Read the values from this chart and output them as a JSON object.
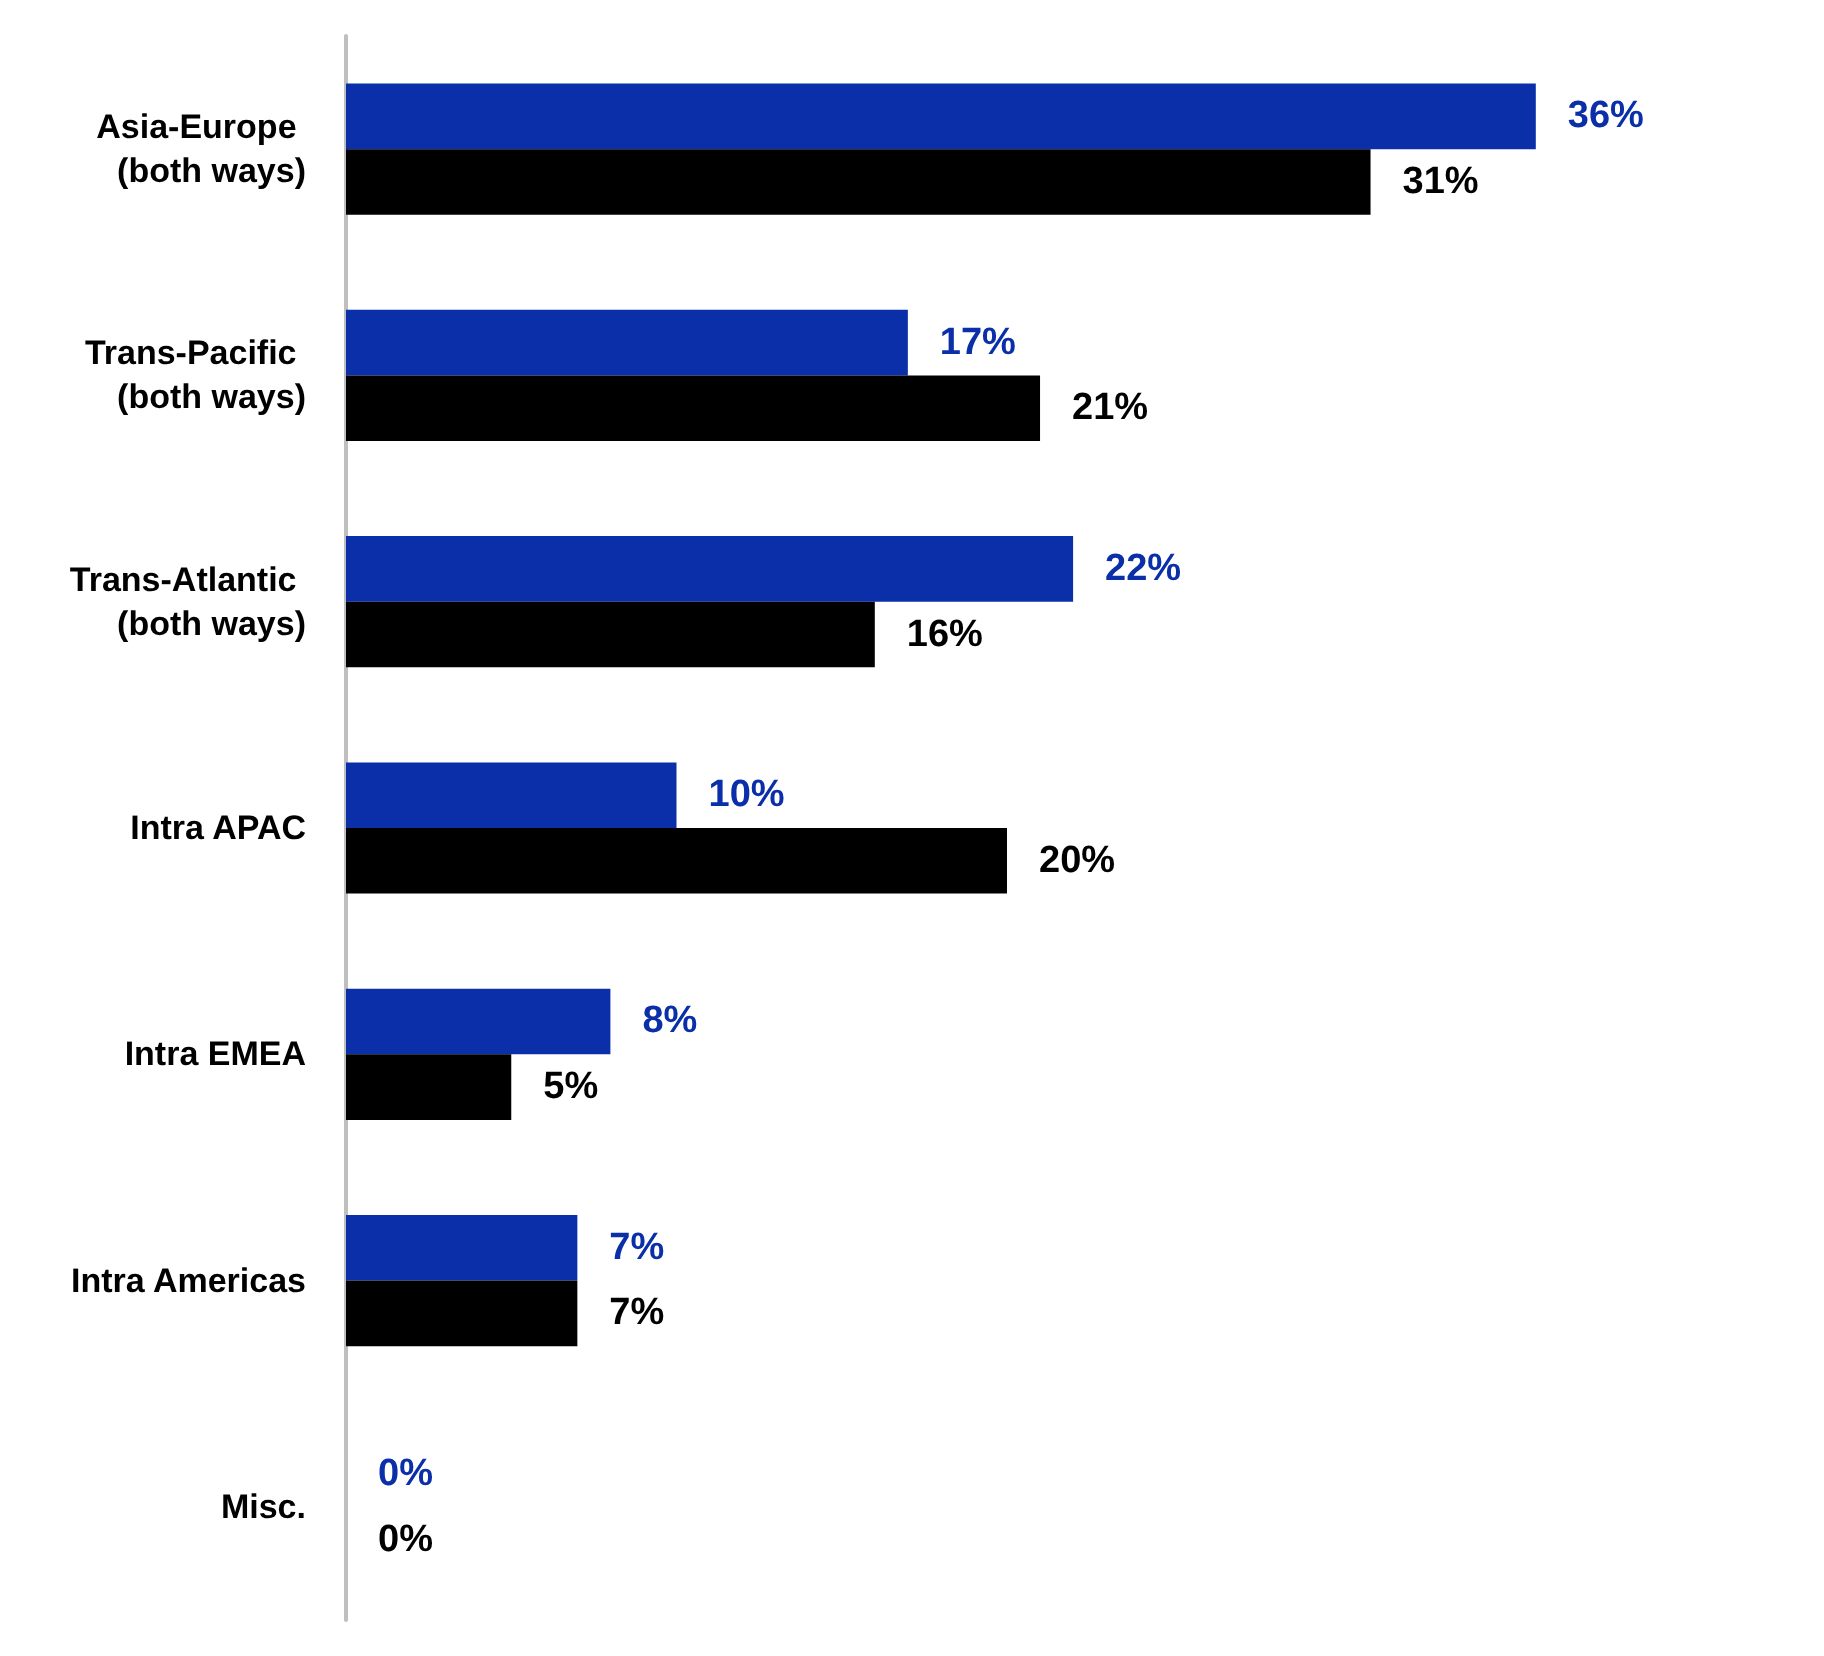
{
  "chart_data": {
    "type": "bar",
    "orientation": "horizontal",
    "categories": [
      "Asia-Europe (both ways)",
      "Trans-Pacific (both ways)",
      "Trans-Atlantic (both ways)",
      "Intra APAC",
      "Intra EMEA",
      "Intra Americas",
      "Misc."
    ],
    "series": [
      {
        "color": "#0a2fa8",
        "values": [
          36,
          17,
          22,
          10,
          8,
          7,
          0
        ],
        "value_labels": [
          "36%",
          "17%",
          "22%",
          "10%",
          "8%",
          "7%",
          "0%"
        ]
      },
      {
        "color": "#000000",
        "values": [
          31,
          21,
          16,
          20,
          5,
          7,
          0
        ],
        "value_labels": [
          "31%",
          "21%",
          "16%",
          "20%",
          "5%",
          "7%",
          "0%"
        ]
      }
    ],
    "grid": false
  }
}
